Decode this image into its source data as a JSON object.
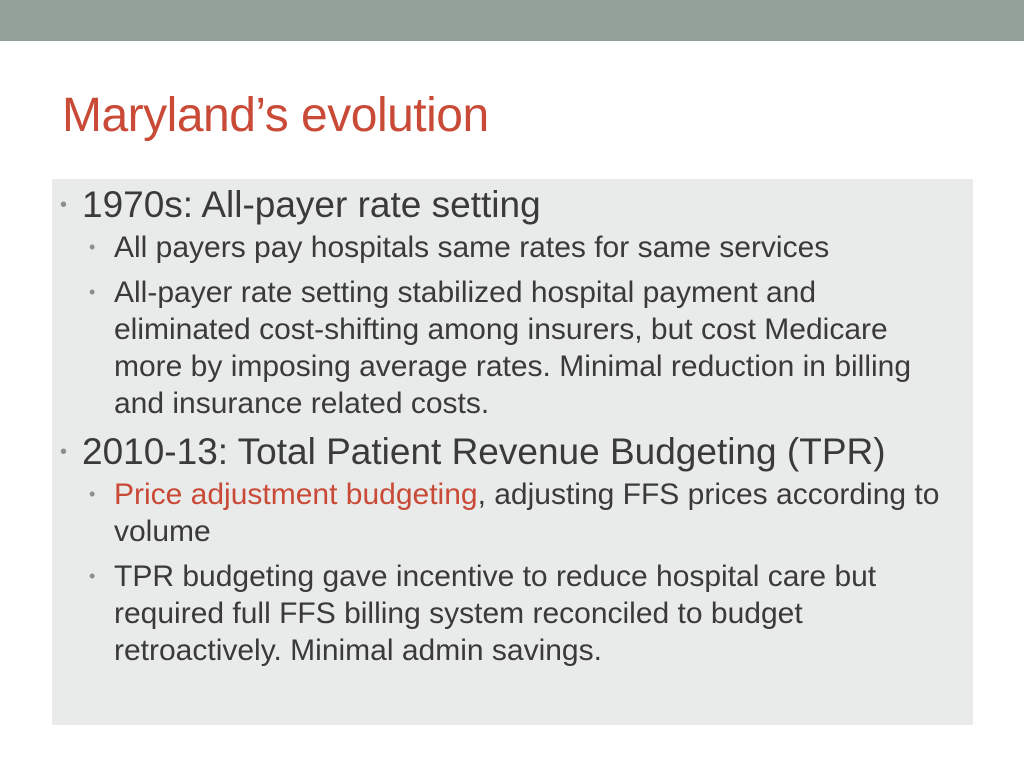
{
  "colors": {
    "top_bar": "#94a19b",
    "title": "#c94a36",
    "content_background": "#e9eaea",
    "body_text": "#3a3a3a",
    "highlight": "#c94a36"
  },
  "slide": {
    "title": "Maryland’s evolution",
    "bullets": [
      {
        "text": "1970s: All-payer rate setting",
        "sub": [
          {
            "text": "All payers pay hospitals same rates for same services"
          },
          {
            "text": "All-payer rate setting stabilized hospital payment and eliminated cost-shifting among insurers, but cost Medicare more by imposing average rates. Minimal reduction in billing and insurance related costs."
          }
        ]
      },
      {
        "text": "2010-13: Total Patient Revenue Budgeting (TPR)",
        "sub": [
          {
            "highlight": "Price adjustment budgeting",
            "rest": ", adjusting FFS prices according to volume"
          },
          {
            "text": "TPR budgeting gave incentive to reduce hospital care but required full FFS billing system reconciled to budget retroactively. Minimal admin savings."
          }
        ]
      }
    ]
  }
}
